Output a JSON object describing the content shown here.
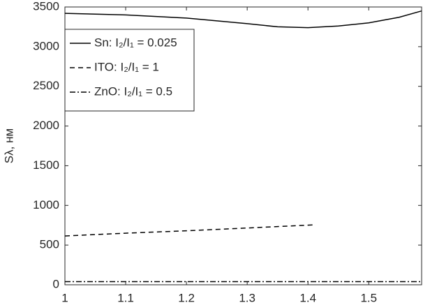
{
  "chart_data": {
    "type": "line",
    "y_label": "Sλ, нм",
    "xlim": [
      1,
      1.587
    ],
    "xticks": [
      1,
      1.1,
      1.2,
      1.3,
      1.4,
      1.5
    ],
    "ylim": [
      0,
      3500
    ],
    "yticks": [
      0,
      500,
      1000,
      1500,
      2000,
      2500,
      3000,
      3500
    ],
    "legend": "upper left",
    "series": [
      {
        "name": "Sn: I₂/I₁ = 0.025",
        "color": "#000000",
        "dash": "solid",
        "x": [
          1,
          1.1,
          1.2,
          1.3,
          1.35,
          1.4,
          1.45,
          1.5,
          1.55,
          1.587
        ],
        "values": [
          3420,
          3400,
          3360,
          3290,
          3250,
          3240,
          3260,
          3300,
          3370,
          3450
        ]
      },
      {
        "name": "ITO: I₂/I₁ = 1",
        "color": "#000000",
        "dash": "dashed",
        "x": [
          1,
          1.1,
          1.2,
          1.3,
          1.41
        ],
        "values": [
          615,
          650,
          680,
          715,
          755
        ]
      },
      {
        "name": "ZnO: I₂/I₁ = 0.5",
        "color": "#000000",
        "dash": "dashdot",
        "x": [
          1,
          1.587
        ],
        "values": [
          40,
          40
        ]
      }
    ]
  }
}
